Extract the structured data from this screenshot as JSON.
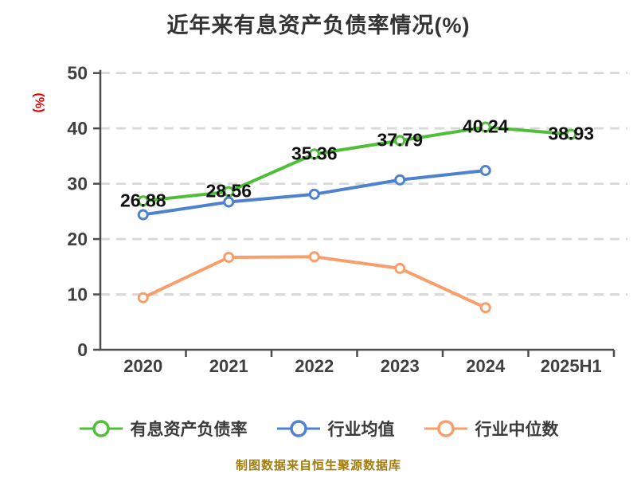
{
  "title": "近年来有息资产负债率情况(%)",
  "footer": "制图数据来自恒生聚源数据库",
  "chart_data": {
    "type": "line",
    "title": "近年来有息资产负债率情况(%)",
    "categories": [
      "2020",
      "2021",
      "2022",
      "2023",
      "2024",
      "2025H1"
    ],
    "series": [
      {
        "name": "有息资产负债率",
        "color": "#50be38",
        "values": [
          26.88,
          28.56,
          35.36,
          37.79,
          40.24,
          38.93
        ],
        "labeled": true
      },
      {
        "name": "行业均值",
        "color": "#4f81d2",
        "values": [
          24.4,
          26.7,
          28.1,
          30.7,
          32.4,
          null
        ],
        "labeled": false
      },
      {
        "name": "行业中位数",
        "color": "#f89e6c",
        "values": [
          9.4,
          16.7,
          16.8,
          14.7,
          7.6,
          null
        ],
        "labeled": false
      }
    ],
    "ylabel": "(%)",
    "xlabel": "",
    "ylim": [
      0,
      50
    ],
    "yticks": [
      0,
      10,
      20,
      30,
      40,
      50
    ],
    "grid": "horizontal-dashed",
    "legend_position": "bottom",
    "marker": "white-filled-circle"
  },
  "colors": {
    "background": "#ffffff",
    "axis": "#4d4d4d",
    "grid": "#d8d8d8",
    "tick_label": "#404040",
    "data_label": "#111111",
    "title": "#333333",
    "ylabel": "#e60000",
    "legend_text": "#3a3a3a",
    "footer": "#a37c0c"
  }
}
